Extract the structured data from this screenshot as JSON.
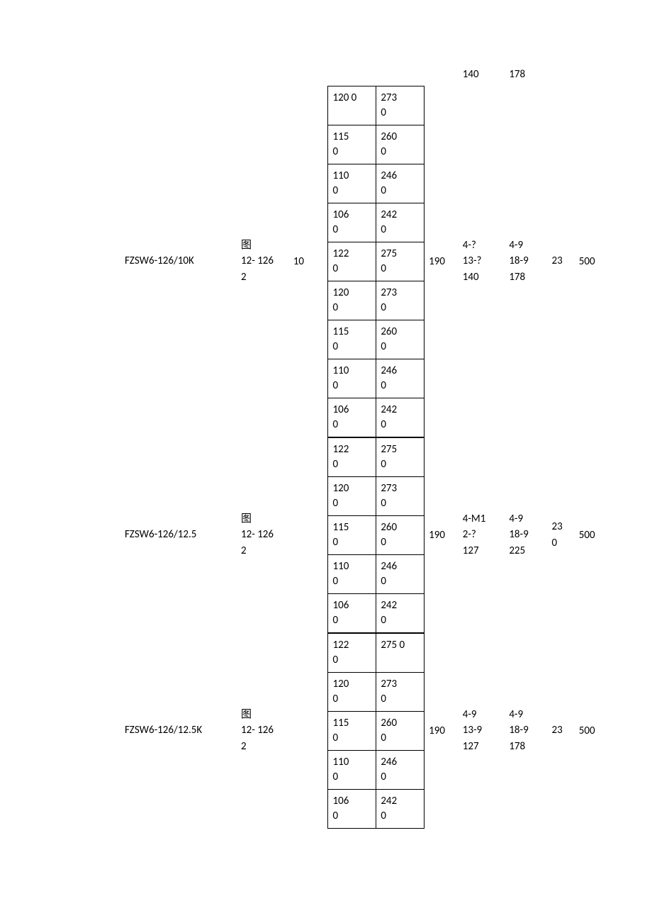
{
  "header": {
    "f": "140",
    "g": "178"
  },
  "rows": [
    {
      "model": "FZSW6-126/10K",
      "figure": "图\n12- 126\n2",
      "num": "10",
      "pairs": [
        [
          "120 0",
          "273\n0"
        ],
        [
          "115\n0",
          "260\n0"
        ],
        [
          "110\n0",
          "246\n0"
        ],
        [
          "106\n0",
          "242\n0"
        ],
        [
          "122\n0",
          "275\n0"
        ],
        [
          "120\n0",
          "273\n0"
        ],
        [
          "115\n0",
          "260\n0"
        ],
        [
          "110\n0",
          "246\n0"
        ],
        [
          "106\n0",
          "242\n0"
        ]
      ],
      "e": "190",
      "f": "4-?\n13-?\n140",
      "g": "4-9\n18-9\n178",
      "h": "23",
      "i": "500"
    },
    {
      "model": "FZSW6-126/12.5",
      "figure": "图\n12- 126\n2",
      "num": "",
      "pairs": [
        [
          "122\n0",
          "275\n0"
        ],
        [
          "120\n0",
          "273\n0"
        ],
        [
          "115\n0",
          "260\n0"
        ],
        [
          "110\n0",
          "246\n0"
        ],
        [
          "106\n0",
          "242\n0"
        ]
      ],
      "e": "190",
      "f": "4-M1\n2-?\n127",
      "g": "4-9\n18-9\n225",
      "h": "23\n0",
      "i": "500"
    },
    {
      "model": "FZSW6-126/12.5K",
      "figure": "图\n12- 126\n2",
      "num": "",
      "pairs": [
        [
          "122\n0",
          "275 0"
        ],
        [
          "120\n0",
          "273\n0"
        ],
        [
          "115\n0",
          "260\n0"
        ],
        [
          "110\n0",
          "246\n0"
        ],
        [
          "106\n0",
          "242\n0"
        ]
      ],
      "e": "190",
      "f": "4-9\n13-9\n127",
      "g": "4-9\n18-9\n178",
      "h": "23",
      "i": "500"
    }
  ]
}
